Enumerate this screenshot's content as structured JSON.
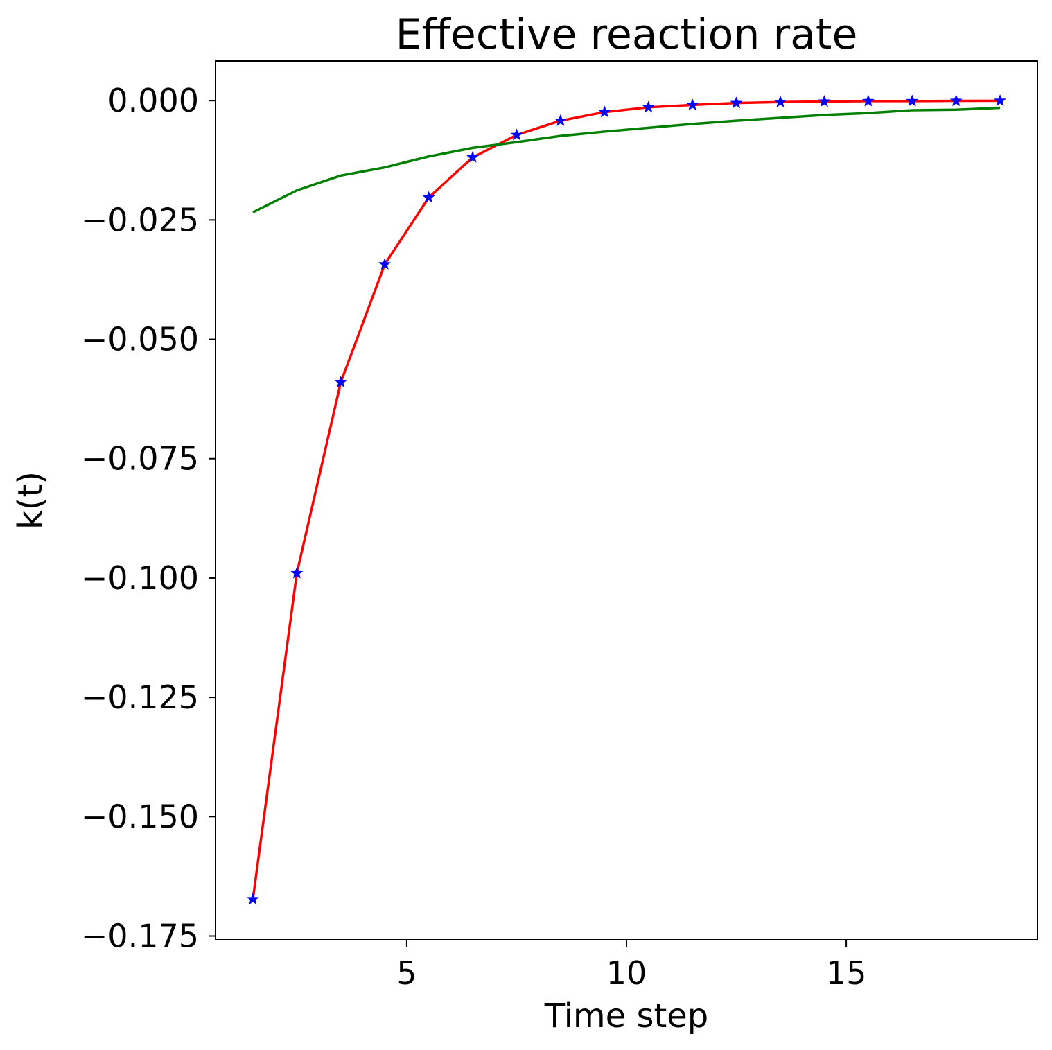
{
  "chart_data": {
    "type": "line",
    "title": "Effective reaction rate",
    "xlabel": "Time step",
    "ylabel": "k(t)",
    "xlim": [
      0.65,
      19.35
    ],
    "ylim": [
      -0.1758,
      0.0083
    ],
    "xticks": [
      5,
      10,
      15
    ],
    "xtick_labels": [
      "5",
      "10",
      "15"
    ],
    "yticks": [
      0.0,
      -0.025,
      -0.05,
      -0.075,
      -0.1,
      -0.125,
      -0.15,
      -0.175
    ],
    "ytick_labels": [
      "0.000",
      "−0.025",
      "−0.050",
      "−0.075",
      "−0.100",
      "−0.125",
      "−0.150",
      "−0.175"
    ],
    "grid": false,
    "legend": "none",
    "x": [
      1.5,
      2.5,
      3.5,
      4.5,
      5.5,
      6.5,
      7.5,
      8.5,
      9.5,
      10.5,
      11.5,
      12.5,
      13.5,
      14.5,
      15.5,
      16.5,
      17.5,
      18.5
    ],
    "series": [
      {
        "style": "markers",
        "marker": "star",
        "color": "#0000ff",
        "values": [
          -0.1673,
          -0.099,
          -0.059,
          -0.0343,
          -0.0203,
          -0.0119,
          -0.0072,
          -0.0042,
          -0.0024,
          -0.0014,
          -0.0009,
          -0.0005,
          -0.0003,
          -0.0002,
          -0.0001,
          -0.0001,
          -5e-05,
          -3e-05
        ]
      },
      {
        "style": "line",
        "color": "#ff0000",
        "values": [
          -0.1673,
          -0.099,
          -0.059,
          -0.0343,
          -0.0203,
          -0.0119,
          -0.0072,
          -0.0042,
          -0.0024,
          -0.0014,
          -0.0009,
          -0.0005,
          -0.0003,
          -0.0002,
          -0.0001,
          -0.0001,
          -5e-05,
          -3e-05
        ]
      },
      {
        "style": "line",
        "color": "#008000",
        "values": [
          -0.0234,
          -0.0188,
          -0.0157,
          -0.014,
          -0.0117,
          -0.0099,
          -0.0087,
          -0.0074,
          -0.0065,
          -0.0057,
          -0.0049,
          -0.0042,
          -0.0036,
          -0.003,
          -0.0026,
          -0.002,
          -0.0019,
          -0.0015
        ]
      }
    ]
  }
}
